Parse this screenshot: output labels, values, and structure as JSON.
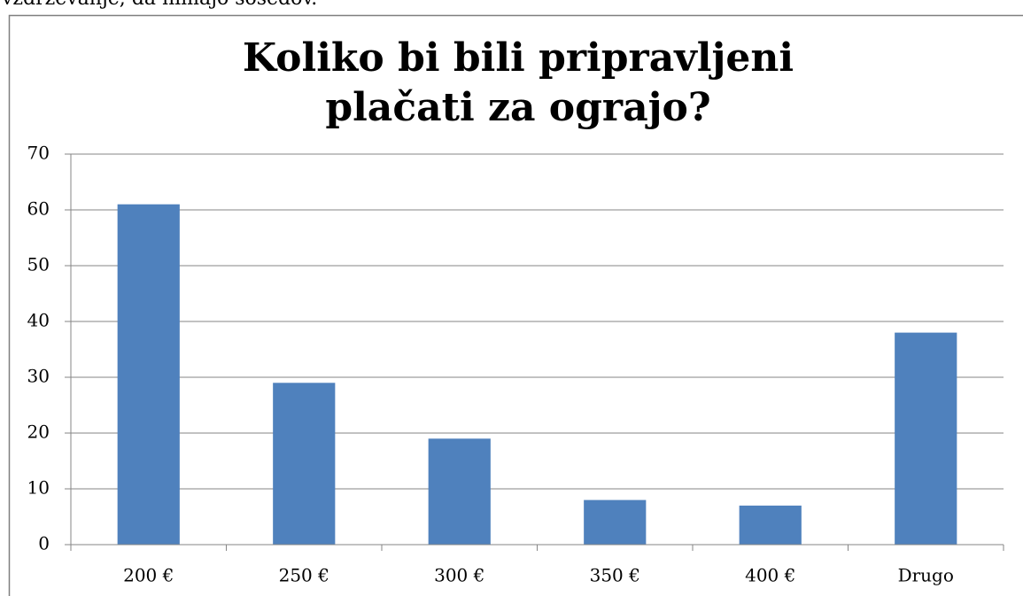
{
  "text_above": "vzdrževanje, da nimajo sosedov.",
  "chart_data": {
    "type": "bar",
    "title": "Koliko bi bili pripravljeni plačati za ograjo?",
    "categories": [
      "200 €",
      "250 €",
      "300 €",
      "350 €",
      "400 €",
      "Drugo"
    ],
    "values": [
      61,
      29,
      19,
      8,
      7,
      38
    ],
    "color": "#4f81bd",
    "ylim": [
      0,
      70
    ],
    "yticks": [
      0,
      10,
      20,
      30,
      40,
      50,
      60,
      70
    ],
    "grid": true
  }
}
